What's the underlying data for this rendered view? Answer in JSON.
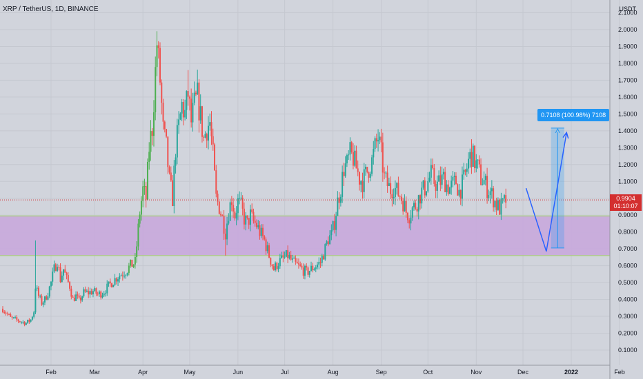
{
  "header": {
    "symbol_line": "XRP / TetherUS, 1D, BINANCE",
    "unit": "USDT"
  },
  "measure": {
    "label": "0.7108 (100.98%) 7108",
    "from": 0.705,
    "to": 1.416,
    "color": "#2196f3"
  },
  "current": {
    "price_label": "0.9904",
    "countdown": "01:10:07",
    "value": 0.9904,
    "color": "#d32f2f"
  },
  "chart_data": {
    "type": "candlestick",
    "title": "XRP / TetherUS, 1D, BINANCE",
    "ylabel": "USDT",
    "ylim": [
      0.05,
      2.1
    ],
    "y_ticks": [
      "0.1000",
      "0.2000",
      "0.3000",
      "0.4000",
      "0.5000",
      "0.6000",
      "0.7000",
      "0.8000",
      "0.9000",
      "1.0000",
      "1.1000",
      "1.2000",
      "1.3000",
      "1.4000",
      "1.5000",
      "1.6000",
      "1.7000",
      "1.8000",
      "1.9000",
      "2.0000",
      "2.1000"
    ],
    "x_ticks": [
      {
        "label": "Feb",
        "day": 31
      },
      {
        "label": "Mar",
        "day": 59
      },
      {
        "label": "Apr",
        "day": 90
      },
      {
        "label": "May",
        "day": 120
      },
      {
        "label": "Jun",
        "day": 151
      },
      {
        "label": "Jul",
        "day": 181
      },
      {
        "label": "Aug",
        "day": 212
      },
      {
        "label": "Sep",
        "day": 243
      },
      {
        "label": "Oct",
        "day": 273
      },
      {
        "label": "Nov",
        "day": 304
      },
      {
        "label": "Dec",
        "day": 334
      },
      {
        "label": "2022",
        "day": 365
      },
      {
        "label": "Feb",
        "day": 396
      }
    ],
    "x_range_days": [
      -5,
      412
    ],
    "support_zone": {
      "low": 0.66,
      "high": 0.895,
      "fill": "#c8a8dc",
      "border": "#a5d66b"
    },
    "projection_path": [
      [
        336,
        1.06
      ],
      [
        349,
        0.685
      ],
      [
        362,
        1.39
      ]
    ],
    "up_color": "#26a69a",
    "up_color_bright": "#4caf50",
    "down_color": "#ef5350",
    "close_series": [
      [
        0,
        0.345
      ],
      [
        5,
        0.29
      ],
      [
        10,
        0.275
      ],
      [
        15,
        0.26
      ],
      [
        18,
        0.28
      ],
      [
        20,
        0.33
      ],
      [
        21,
        0.48
      ],
      [
        23,
        0.42
      ],
      [
        25,
        0.38
      ],
      [
        27,
        0.4
      ],
      [
        29,
        0.44
      ],
      [
        31,
        0.5
      ],
      [
        33,
        0.58
      ],
      [
        35,
        0.63
      ],
      [
        37,
        0.52
      ],
      [
        39,
        0.58
      ],
      [
        41,
        0.52
      ],
      [
        43,
        0.48
      ],
      [
        45,
        0.4
      ],
      [
        47,
        0.42
      ],
      [
        49,
        0.39
      ],
      [
        52,
        0.44
      ],
      [
        55,
        0.44
      ],
      [
        58,
        0.45
      ],
      [
        61,
        0.43
      ],
      [
        64,
        0.44
      ],
      [
        67,
        0.47
      ],
      [
        70,
        0.5
      ],
      [
        73,
        0.53
      ],
      [
        76,
        0.55
      ],
      [
        79,
        0.57
      ],
      [
        82,
        0.6
      ],
      [
        85,
        0.62
      ],
      [
        88,
        0.92
      ],
      [
        90,
        1.05
      ],
      [
        92,
        1.0
      ],
      [
        94,
        1.3
      ],
      [
        96,
        1.42
      ],
      [
        98,
        1.75
      ],
      [
        99,
        1.92
      ],
      [
        101,
        1.7
      ],
      [
        103,
        1.4
      ],
      [
        105,
        1.3
      ],
      [
        107,
        1.1
      ],
      [
        109,
        1.0
      ],
      [
        111,
        1.3
      ],
      [
        113,
        1.42
      ],
      [
        115,
        1.55
      ],
      [
        117,
        1.5
      ],
      [
        119,
        1.62
      ],
      [
        121,
        1.45
      ],
      [
        123,
        1.55
      ],
      [
        125,
        1.6
      ],
      [
        127,
        1.48
      ],
      [
        129,
        1.35
      ],
      [
        131,
        1.42
      ],
      [
        133,
        1.45
      ],
      [
        135,
        1.25
      ],
      [
        137,
        1.0
      ],
      [
        139,
        0.95
      ],
      [
        141,
        0.88
      ],
      [
        143,
        0.8
      ],
      [
        145,
        0.92
      ],
      [
        147,
        1.0
      ],
      [
        149,
        0.9
      ],
      [
        151,
        0.98
      ],
      [
        153,
        0.95
      ],
      [
        155,
        0.88
      ],
      [
        157,
        0.85
      ],
      [
        159,
        0.9
      ],
      [
        161,
        0.86
      ],
      [
        163,
        0.84
      ],
      [
        165,
        0.8
      ],
      [
        168,
        0.75
      ],
      [
        171,
        0.66
      ],
      [
        174,
        0.58
      ],
      [
        177,
        0.62
      ],
      [
        180,
        0.64
      ],
      [
        183,
        0.66
      ],
      [
        186,
        0.62
      ],
      [
        189,
        0.6
      ],
      [
        192,
        0.58
      ],
      [
        195,
        0.56
      ],
      [
        198,
        0.58
      ],
      [
        201,
        0.6
      ],
      [
        204,
        0.62
      ],
      [
        207,
        0.7
      ],
      [
        209,
        0.76
      ],
      [
        211,
        0.78
      ],
      [
        213,
        0.86
      ],
      [
        215,
        0.98
      ],
      [
        217,
        1.06
      ],
      [
        219,
        1.18
      ],
      [
        221,
        1.2
      ],
      [
        223,
        1.26
      ],
      [
        225,
        1.24
      ],
      [
        227,
        1.18
      ],
      [
        229,
        1.12
      ],
      [
        231,
        1.1
      ],
      [
        233,
        1.14
      ],
      [
        235,
        1.18
      ],
      [
        237,
        1.22
      ],
      [
        239,
        1.3
      ],
      [
        241,
        1.36
      ],
      [
        243,
        1.26
      ],
      [
        245,
        1.12
      ],
      [
        247,
        1.08
      ],
      [
        249,
        1.05
      ],
      [
        251,
        1.07
      ],
      [
        253,
        1.04
      ],
      [
        255,
        1.02
      ],
      [
        257,
        0.98
      ],
      [
        259,
        0.92
      ],
      [
        261,
        0.9
      ],
      [
        263,
        0.94
      ],
      [
        265,
        0.96
      ],
      [
        267,
        1.0
      ],
      [
        269,
        1.04
      ],
      [
        271,
        1.06
      ],
      [
        273,
        1.1
      ],
      [
        275,
        1.14
      ],
      [
        277,
        1.1
      ],
      [
        279,
        1.08
      ],
      [
        281,
        1.1
      ],
      [
        283,
        1.12
      ],
      [
        285,
        1.08
      ],
      [
        287,
        1.06
      ],
      [
        289,
        1.08
      ],
      [
        291,
        1.1
      ],
      [
        293,
        1.04
      ],
      [
        295,
        1.08
      ],
      [
        297,
        1.14
      ],
      [
        299,
        1.22
      ],
      [
        301,
        1.26
      ],
      [
        303,
        1.22
      ],
      [
        305,
        1.18
      ],
      [
        307,
        1.12
      ],
      [
        309,
        1.1
      ],
      [
        311,
        1.06
      ],
      [
        313,
        1.04
      ],
      [
        315,
        1.0
      ],
      [
        317,
        0.96
      ],
      [
        319,
        0.94
      ],
      [
        321,
        0.96
      ],
      [
        323,
        0.99
      ]
    ],
    "high_spikes": [
      {
        "day": 21,
        "high": 0.75
      },
      {
        "day": 99,
        "high": 1.96
      },
      {
        "day": 119,
        "high": 1.76
      },
      {
        "day": 241,
        "high": 1.41
      },
      {
        "day": 301,
        "high": 1.35
      },
      {
        "day": 143,
        "high": 0.66
      }
    ]
  }
}
